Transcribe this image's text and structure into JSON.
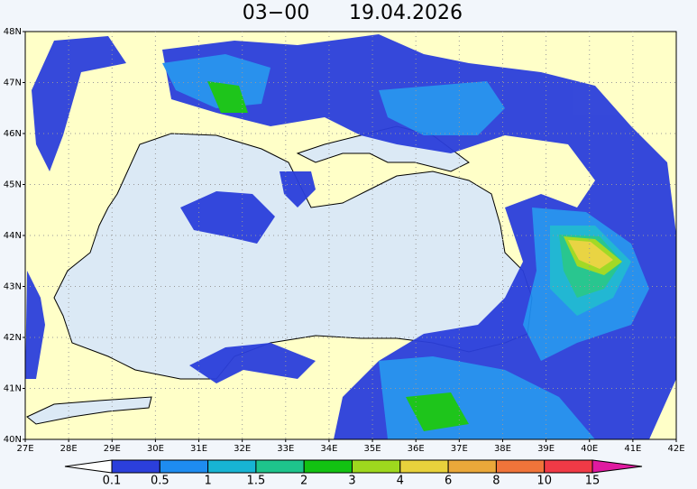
{
  "header": {
    "time": "03−00",
    "date": "19.04.2026"
  },
  "lat_labels": [
    "48N",
    "47N",
    "46N",
    "45N",
    "44N",
    "43N",
    "42N",
    "41N",
    "40N"
  ],
  "lon_labels": [
    "27E",
    "28E",
    "29E",
    "30E",
    "31E",
    "32E",
    "33E",
    "34E",
    "35E",
    "36E",
    "37E",
    "38E",
    "39E",
    "40E",
    "41E",
    "42E"
  ],
  "colorbar": {
    "labels": [
      0.1,
      0.5,
      1,
      1.5,
      2,
      3,
      4,
      6,
      8,
      10,
      15
    ],
    "colors": [
      "#ffffff",
      "#2b3fdb",
      "#1e8cf0",
      "#17b4d4",
      "#1ec48c",
      "#12c212",
      "#9ed81e",
      "#e8d23c",
      "#eaa83a",
      "#f0743a",
      "#f03a46",
      "#e01aa0"
    ]
  }
}
